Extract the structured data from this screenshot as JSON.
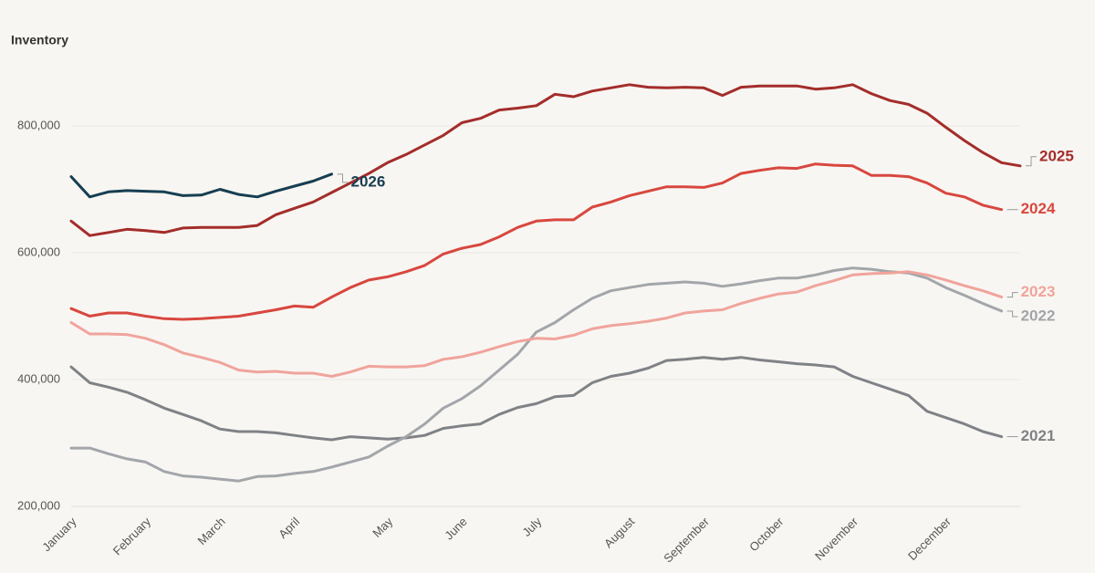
{
  "chart_data": {
    "type": "line",
    "y_label": "Inventory",
    "categories": [
      "January",
      null,
      null,
      null,
      "February",
      null,
      null,
      null,
      "March",
      null,
      null,
      null,
      "April",
      null,
      null,
      null,
      null,
      "May",
      null,
      null,
      null,
      "June",
      null,
      null,
      null,
      "July",
      null,
      null,
      null,
      null,
      "August",
      null,
      null,
      null,
      "September",
      null,
      null,
      null,
      "October",
      null,
      null,
      null,
      "November",
      null,
      null,
      null,
      null,
      "December",
      null,
      null,
      null,
      null
    ],
    "ylim": [
      200000,
      890000
    ],
    "yticks": [
      {
        "value": 200000,
        "label": "200,000"
      },
      {
        "value": 400000,
        "label": "400,000"
      },
      {
        "value": 600000,
        "label": "600,000"
      },
      {
        "value": 800000,
        "label": "800,000"
      }
    ],
    "grid": true,
    "series": [
      {
        "name": "2021",
        "color": "#7f8286",
        "values": [
          420000,
          395000,
          388000,
          380000,
          368000,
          355000,
          345000,
          335000,
          322000,
          318000,
          318000,
          316000,
          312000,
          308000,
          305000,
          310000,
          308000,
          306000,
          308000,
          312000,
          323000,
          327000,
          330000,
          345000,
          356000,
          362000,
          373000,
          375000,
          395000,
          405000,
          410000,
          418000,
          430000,
          432000,
          435000,
          432000,
          435000,
          431000,
          428000,
          425000,
          423000,
          420000,
          405000,
          395000,
          385000,
          375000,
          350000,
          340000,
          330000,
          318000,
          310000,
          null
        ]
      },
      {
        "name": "2022",
        "color": "#a2a6aa",
        "values": [
          292000,
          292000,
          283000,
          275000,
          270000,
          255000,
          248000,
          246000,
          243000,
          240000,
          247000,
          248000,
          252000,
          255000,
          262000,
          270000,
          278000,
          295000,
          310000,
          330000,
          355000,
          370000,
          390000,
          415000,
          440000,
          475000,
          490000,
          510000,
          528000,
          540000,
          545000,
          550000,
          552000,
          554000,
          552000,
          547000,
          551000,
          556000,
          560000,
          560000,
          565000,
          572000,
          576000,
          574000,
          570000,
          568000,
          560000,
          545000,
          533000,
          520000,
          508000,
          null
        ]
      },
      {
        "name": "2023",
        "color": "#f0a49c",
        "values": [
          490000,
          472000,
          472000,
          471000,
          465000,
          455000,
          442000,
          435000,
          427000,
          415000,
          412000,
          413000,
          410000,
          410000,
          405000,
          412000,
          421000,
          420000,
          420000,
          422000,
          432000,
          436000,
          443000,
          452000,
          460000,
          465000,
          464000,
          470000,
          480000,
          485000,
          488000,
          492000,
          497000,
          505000,
          508000,
          510000,
          520000,
          528000,
          535000,
          538000,
          548000,
          556000,
          565000,
          567000,
          568000,
          570000,
          565000,
          557000,
          548000,
          540000,
          530000,
          null
        ]
      },
      {
        "name": "2024",
        "color": "#d8473f",
        "values": [
          512000,
          500000,
          505000,
          505000,
          500000,
          496000,
          495000,
          496000,
          498000,
          500000,
          505000,
          510000,
          516000,
          514000,
          530000,
          545000,
          557000,
          562000,
          570000,
          580000,
          598000,
          607000,
          613000,
          625000,
          640000,
          650000,
          652000,
          652000,
          672000,
          680000,
          690000,
          697000,
          704000,
          704000,
          703000,
          710000,
          725000,
          730000,
          734000,
          733000,
          740000,
          738000,
          737000,
          722000,
          722000,
          720000,
          710000,
          694000,
          688000,
          675000,
          668000,
          null
        ]
      },
      {
        "name": "2025",
        "color": "#a32d2b",
        "values": [
          650000,
          627000,
          632000,
          637000,
          635000,
          632000,
          639000,
          640000,
          640000,
          640000,
          643000,
          660000,
          670000,
          680000,
          695000,
          710000,
          725000,
          742000,
          755000,
          770000,
          785000,
          805000,
          812000,
          825000,
          828000,
          832000,
          850000,
          846000,
          855000,
          860000,
          865000,
          861000,
          860000,
          861000,
          860000,
          848000,
          861000,
          863000,
          863000,
          863000,
          858000,
          860000,
          865000,
          851000,
          840000,
          834000,
          820000,
          798000,
          777000,
          758000,
          742000,
          737000
        ]
      },
      {
        "name": "2026",
        "color": "#173e52",
        "values": [
          720000,
          688000,
          696000,
          698000,
          697000,
          696000,
          690000,
          691000,
          700000,
          692000,
          688000,
          697000,
          705000,
          713000,
          724000,
          null,
          null,
          null,
          null,
          null,
          null,
          null,
          null,
          null,
          null,
          null,
          null,
          null,
          null,
          null,
          null,
          null,
          null,
          null,
          null,
          null,
          null,
          null,
          null,
          null,
          null,
          null,
          null,
          null,
          null,
          null,
          null,
          null,
          null,
          null,
          null,
          null
        ]
      }
    ]
  }
}
